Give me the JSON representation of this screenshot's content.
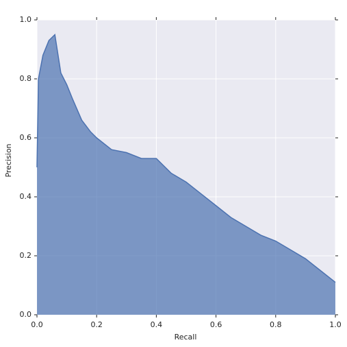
{
  "chart_data": {
    "type": "area",
    "xlabel": "Recall",
    "ylabel": "Precision",
    "x": [
      0,
      0.005,
      0.02,
      0.04,
      0.06,
      0.08,
      0.1,
      0.12,
      0.15,
      0.18,
      0.2,
      0.25,
      0.3,
      0.35,
      0.4,
      0.45,
      0.5,
      0.55,
      0.6,
      0.65,
      0.7,
      0.75,
      0.8,
      0.85,
      0.9,
      0.95,
      1.0
    ],
    "values": [
      0.5,
      0.8,
      0.88,
      0.93,
      0.95,
      0.82,
      0.78,
      0.73,
      0.66,
      0.62,
      0.6,
      0.56,
      0.55,
      0.53,
      0.53,
      0.48,
      0.45,
      0.41,
      0.37,
      0.33,
      0.3,
      0.27,
      0.25,
      0.22,
      0.19,
      0.15,
      0.11
    ],
    "color": "#4c72b0",
    "xlim": [
      0,
      1
    ],
    "ylim": [
      0,
      1
    ],
    "xticks": [
      {
        "value": 0,
        "label": "0.0"
      },
      {
        "value": 0.2,
        "label": "0.2"
      },
      {
        "value": 0.4,
        "label": "0.4"
      },
      {
        "value": 0.6,
        "label": "0.6"
      },
      {
        "value": 0.8,
        "label": "0.8"
      },
      {
        "value": 1,
        "label": "1.0"
      }
    ],
    "yticks": [
      {
        "value": 0,
        "label": "0.0"
      },
      {
        "value": 0.2,
        "label": "0.2"
      },
      {
        "value": 0.4,
        "label": "0.4"
      },
      {
        "value": 0.6,
        "label": "0.6"
      },
      {
        "value": 0.8,
        "label": "0.8"
      },
      {
        "value": 1,
        "label": "1.0"
      }
    ],
    "grid": true
  }
}
